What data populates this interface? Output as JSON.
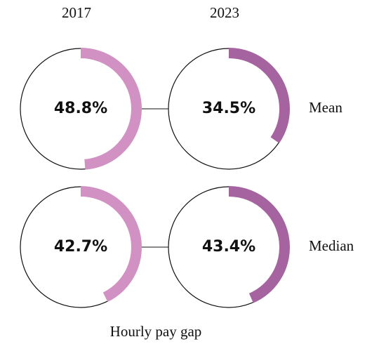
{
  "chart_data": {
    "type": "ring",
    "categories": [
      "Mean",
      "Median"
    ],
    "series": [
      {
        "name": "2017",
        "color": "#d291c3",
        "values": [
          48.8,
          42.7
        ],
        "value_labels": [
          "48.8%",
          "42.7%"
        ]
      },
      {
        "name": "2023",
        "color": "#a5639f",
        "values": [
          34.5,
          43.4
        ],
        "value_labels": [
          "34.5%",
          "43.4%"
        ]
      }
    ],
    "ylim": [
      0,
      100
    ],
    "xlabel": "Hourly pay gap"
  }
}
